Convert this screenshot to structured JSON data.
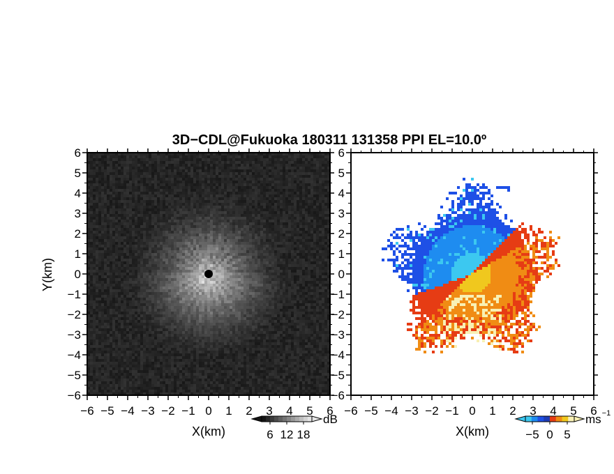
{
  "title": "3D−CDL@Fukuoka 180311 131358 PPI EL=10.0º",
  "colors": {
    "background": "#ffffff",
    "panel_left_bg": "#1a1a1a",
    "velocity_negative": [
      "#3cc8f0",
      "#1e8cf0",
      "#1e50e6"
    ],
    "velocity_positive": [
      "#e63c14",
      "#f08c14",
      "#f0c81e",
      "#f8f0b4"
    ]
  },
  "chart_data": [
    {
      "type": "heatmap",
      "name": "backscatter_intensity",
      "xlabel": "X(km)",
      "ylabel": "Y(km)",
      "xlim": [
        -6,
        6
      ],
      "ylim": [
        -6,
        6
      ],
      "xticks": [
        "−6",
        "−5",
        "−4",
        "−3",
        "−2",
        "−1",
        "0",
        "1",
        "2",
        "3",
        "4",
        "5",
        "6"
      ],
      "yticks": [
        "6",
        "5",
        "4",
        "3",
        "2",
        "1",
        "0",
        "−1",
        "−2",
        "−3",
        "−4",
        "−5",
        "−6"
      ],
      "colorbar": {
        "unit": "dB",
        "ticks": [
          "6",
          "12",
          "18"
        ],
        "range": [
          3,
          21
        ],
        "scale": "grayscale"
      },
      "features": {
        "center_marker": [
          0,
          0
        ],
        "echo_radius_km": 4.0
      }
    },
    {
      "type": "heatmap",
      "name": "doppler_velocity",
      "xlabel": "X(km)",
      "ylabel": "",
      "xlim": [
        -6,
        6
      ],
      "ylim": [
        -6,
        6
      ],
      "xticks": [
        "−6",
        "−5",
        "−4",
        "−3",
        "−2",
        "−1",
        "0",
        "1",
        "2",
        "3",
        "4",
        "5",
        "6"
      ],
      "yticks": [
        "6",
        "5",
        "4",
        "3",
        "2",
        "1",
        "0",
        "−1",
        "−2",
        "−3",
        "−4",
        "−5",
        "−6"
      ],
      "colorbar": {
        "unit": "ms",
        "unit_exponent": "−1",
        "ticks": [
          "−5",
          "0",
          "5"
        ],
        "range": [
          -7,
          7
        ]
      },
      "regions": [
        {
          "sign": "negative",
          "azimuth_deg": [
            -95,
            40
          ],
          "radius_km": [
            0,
            3.8
          ]
        },
        {
          "sign": "positive",
          "azimuth_deg": [
            40,
            265
          ],
          "radius_km": [
            0,
            4.0
          ]
        }
      ]
    }
  ]
}
